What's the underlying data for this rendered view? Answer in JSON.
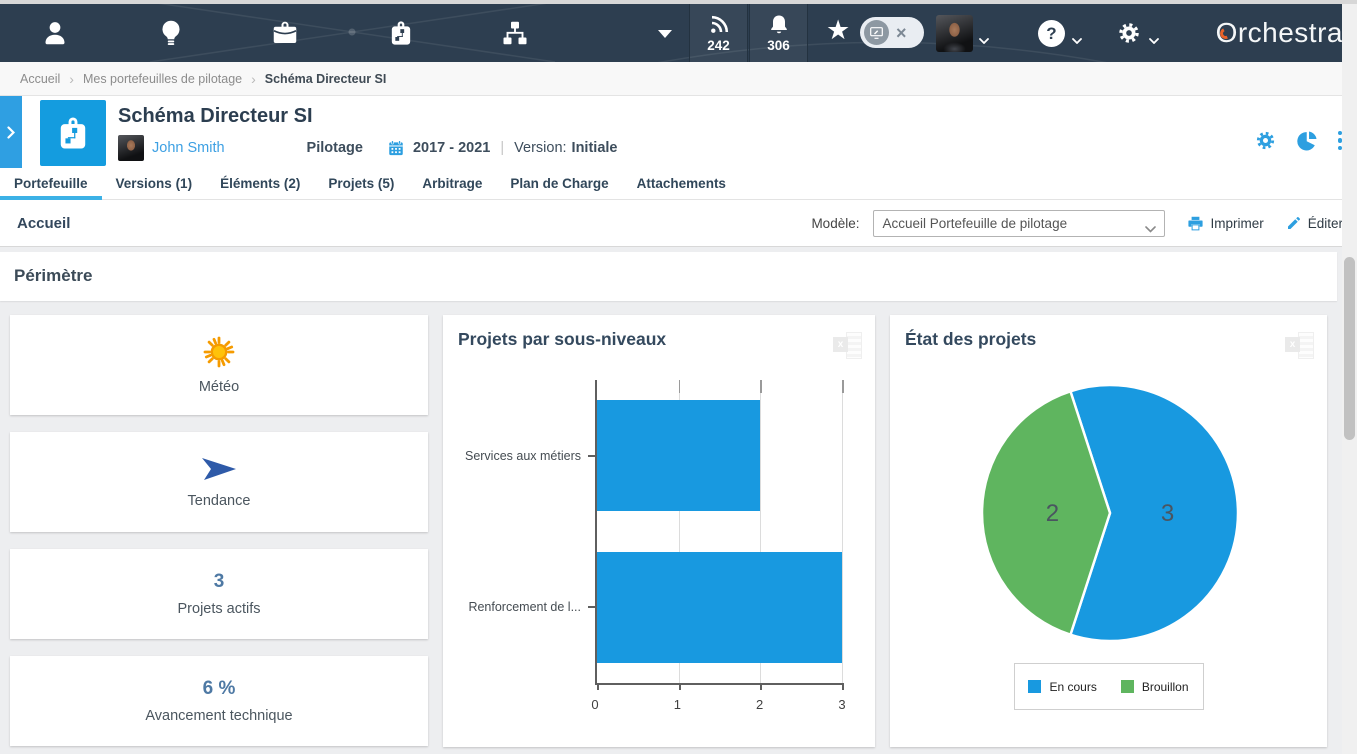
{
  "topbar": {
    "brand": "Orchestra",
    "feed_count": "242",
    "alert_count": "306"
  },
  "icons": {
    "star_glyph": "★",
    "close_glyph": "×",
    "help_glyph": "?",
    "excel_glyph": "x"
  },
  "breadcrumb": {
    "separator": "›",
    "items": [
      "Accueil",
      "Mes portefeuilles de pilotage",
      "Schéma Directeur SI"
    ]
  },
  "header": {
    "title": "Schéma Directeur SI",
    "owner": "John Smith",
    "category": "Pilotage",
    "period": "2017 - 2021",
    "separator": "|",
    "version_label": "Version:",
    "version_value": "Initiale"
  },
  "tabs": [
    {
      "label": "Portefeuille",
      "active": true
    },
    {
      "label": "Versions (1)",
      "active": false
    },
    {
      "label": "Éléments (2)",
      "active": false
    },
    {
      "label": "Projets (5)",
      "active": false
    },
    {
      "label": "Arbitrage",
      "active": false
    },
    {
      "label": "Plan de Charge",
      "active": false
    },
    {
      "label": "Attachements",
      "active": false
    }
  ],
  "toolbar": {
    "section": "Accueil",
    "model_label": "Modèle:",
    "model_value": "Accueil Portefeuille de pilotage",
    "print_label": "Imprimer",
    "edit_label": "Éditer"
  },
  "perimetre": {
    "title": "Périmètre",
    "cards": [
      {
        "icon": "sun",
        "label": "Météo"
      },
      {
        "icon": "trend",
        "label": "Tendance"
      },
      {
        "value": "3",
        "label": "Projets actifs"
      },
      {
        "value": "6 %",
        "label": "Avancement technique"
      }
    ]
  },
  "chart_data": [
    {
      "type": "bar",
      "orientation": "horizontal",
      "title": "Projets par sous-niveaux",
      "categories": [
        "Services aux métiers",
        "Renforcement de l..."
      ],
      "values": [
        2,
        3
      ],
      "xlim": [
        0,
        3
      ],
      "xticks": [
        0,
        1,
        2,
        3
      ],
      "grid": true,
      "bar_color": "#1899e0"
    },
    {
      "type": "pie",
      "title": "État des projets",
      "slices": [
        {
          "label": "En cours",
          "value": 3,
          "color": "#1899e0"
        },
        {
          "label": "Brouillon",
          "value": 2,
          "color": "#5fb55f"
        }
      ],
      "start_angle_deg": -18,
      "value_labels": true,
      "label_color": "#4a5560",
      "legend_position": "bottom"
    }
  ]
}
